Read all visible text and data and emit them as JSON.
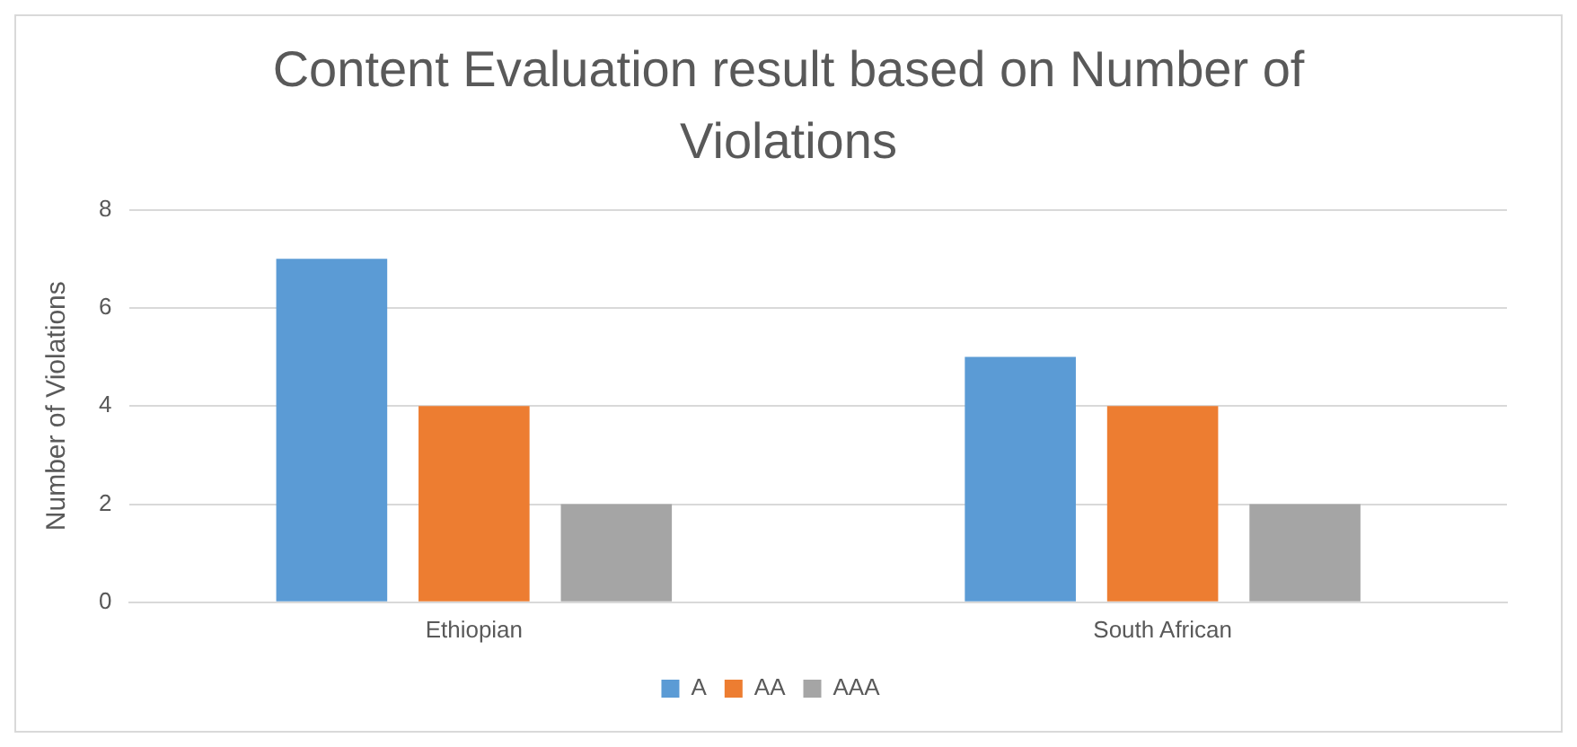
{
  "chart_data": {
    "type": "bar",
    "title": "Content Evaluation result based on Number of Violations",
    "ylabel": "Number of Violations",
    "categories": [
      "Ethiopian",
      "South African"
    ],
    "series": [
      {
        "name": "A",
        "color": "#5b9bd5",
        "values": [
          7,
          5
        ]
      },
      {
        "name": "AA",
        "color": "#ed7d31",
        "values": [
          4,
          4
        ]
      },
      {
        "name": "AAA",
        "color": "#a5a5a5",
        "values": [
          2,
          2
        ]
      }
    ],
    "ylim": [
      0,
      8
    ],
    "yticks": [
      0,
      2,
      4,
      6,
      8
    ],
    "grid": "y",
    "legend": "bottom"
  }
}
